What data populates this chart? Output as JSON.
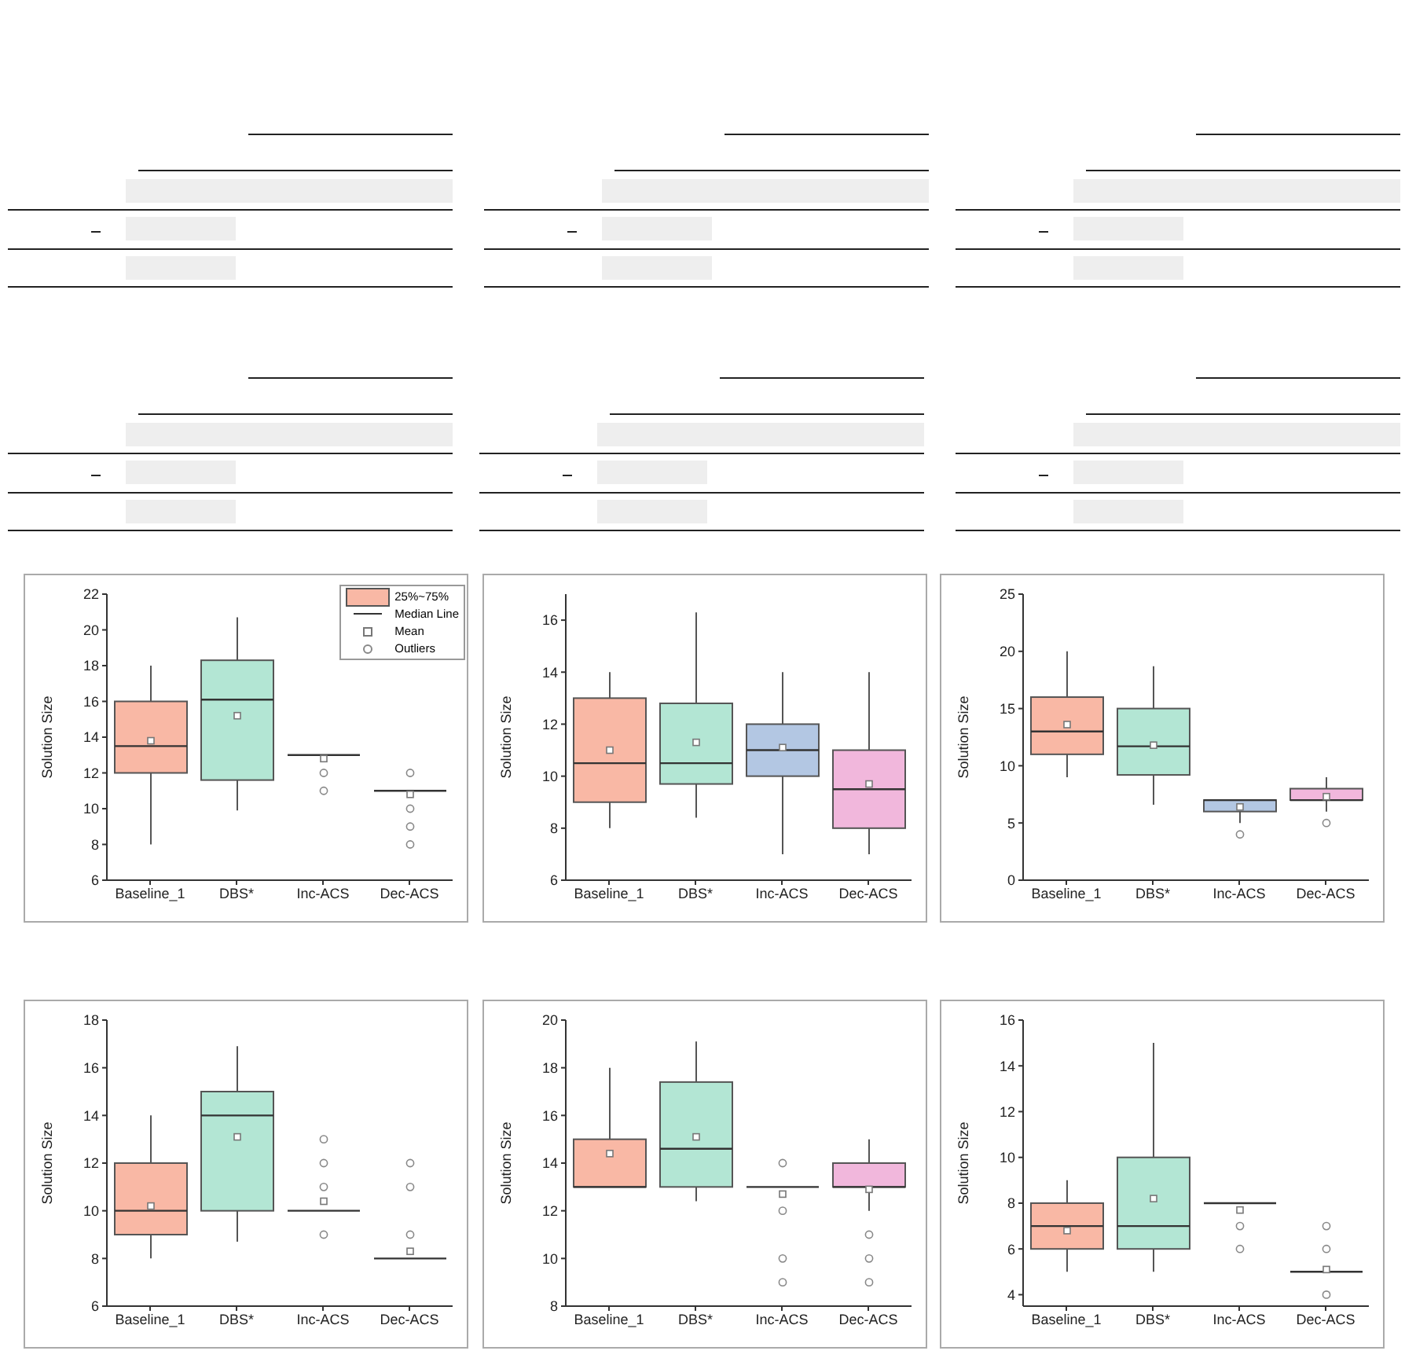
{
  "chart_data": [
    {
      "type": "box",
      "categories": [
        "Baseline_1",
        "DBS*",
        "Inc-ACS",
        "Dec-ACS"
      ],
      "ylabel": "Solution Size",
      "ylim": [
        6,
        22
      ],
      "yticks": [
        6,
        8,
        10,
        12,
        14,
        16,
        18,
        20,
        22
      ],
      "colors": [
        "#f9b8a5",
        "#b3e6d4",
        "#b3c7e3",
        "#f1b7dc"
      ],
      "annotations": [
        "25%~75%",
        "Median Line",
        "Mean",
        "Outliers"
      ],
      "boxes": [
        {
          "low": 8,
          "q1": 12,
          "median": 13.5,
          "q3": 16,
          "high": 18,
          "mean": 13.8
        },
        {
          "low": 9.9,
          "q1": 11.6,
          "median": 16.1,
          "q3": 18.3,
          "high": 20.7,
          "mean": 15.2
        },
        {
          "low": 13,
          "q1": 13,
          "median": 13,
          "q3": 13,
          "high": 13,
          "mean": 12.8,
          "outliers": [
            12,
            11
          ]
        },
        {
          "low": 11,
          "q1": 11,
          "median": 11,
          "q3": 11,
          "high": 11,
          "mean": 10.8,
          "outliers": [
            12,
            10,
            9,
            8
          ]
        }
      ]
    },
    {
      "type": "box",
      "categories": [
        "Baseline_1",
        "DBS*",
        "Inc-ACS",
        "Dec-ACS"
      ],
      "ylabel": "Solution Size",
      "ylim": [
        6,
        17
      ],
      "yticks": [
        6,
        8,
        10,
        12,
        14,
        16
      ],
      "colors": [
        "#f9b8a5",
        "#b3e6d4",
        "#b3c7e3",
        "#f1b7dc"
      ],
      "boxes": [
        {
          "low": 8,
          "q1": 9,
          "median": 10.5,
          "q3": 13,
          "high": 14,
          "mean": 11
        },
        {
          "low": 8.4,
          "q1": 9.7,
          "median": 10.5,
          "q3": 12.8,
          "high": 16.3,
          "mean": 11.3
        },
        {
          "low": 7,
          "q1": 10,
          "median": 11,
          "q3": 12,
          "high": 14,
          "mean": 11.1
        },
        {
          "low": 7,
          "q1": 8,
          "median": 9.5,
          "q3": 11,
          "high": 14,
          "mean": 9.7
        }
      ]
    },
    {
      "type": "box",
      "categories": [
        "Baseline_1",
        "DBS*",
        "Inc-ACS",
        "Dec-ACS"
      ],
      "ylabel": "Solution Size",
      "ylim": [
        0,
        25
      ],
      "yticks": [
        0,
        5,
        10,
        15,
        20,
        25
      ],
      "colors": [
        "#f9b8a5",
        "#b3e6d4",
        "#b3c7e3",
        "#f1b7dc"
      ],
      "boxes": [
        {
          "low": 9,
          "q1": 11,
          "median": 13,
          "q3": 16,
          "high": 20,
          "mean": 13.6
        },
        {
          "low": 6.6,
          "q1": 9.2,
          "median": 11.7,
          "q3": 15,
          "high": 18.7,
          "mean": 11.8
        },
        {
          "low": 5,
          "q1": 6,
          "median": 7,
          "q3": 7,
          "high": 7,
          "mean": 6.4,
          "outliers": [
            4
          ]
        },
        {
          "low": 6,
          "q1": 7,
          "median": 7,
          "q3": 8,
          "high": 9,
          "mean": 7.3,
          "outliers": [
            5
          ]
        }
      ]
    },
    {
      "type": "box",
      "categories": [
        "Baseline_1",
        "DBS*",
        "Inc-ACS",
        "Dec-ACS"
      ],
      "ylabel": "Solution Size",
      "ylim": [
        6,
        18
      ],
      "yticks": [
        6,
        8,
        10,
        12,
        14,
        16,
        18
      ],
      "colors": [
        "#f9b8a5",
        "#b3e6d4",
        "#b3c7e3",
        "#f1b7dc"
      ],
      "boxes": [
        {
          "low": 8,
          "q1": 9,
          "median": 10,
          "q3": 12,
          "high": 14,
          "mean": 10.2
        },
        {
          "low": 8.7,
          "q1": 10,
          "median": 14,
          "q3": 15,
          "high": 16.9,
          "mean": 13.1
        },
        {
          "low": 10,
          "q1": 10,
          "median": 10,
          "q3": 10,
          "high": 10,
          "mean": 10.4,
          "outliers": [
            13,
            12,
            11,
            9
          ]
        },
        {
          "low": 8,
          "q1": 8,
          "median": 8,
          "q3": 8,
          "high": 8,
          "mean": 8.3,
          "outliers": [
            12,
            11,
            9
          ]
        }
      ]
    },
    {
      "type": "box",
      "categories": [
        "Baseline_1",
        "DBS*",
        "Inc-ACS",
        "Dec-ACS"
      ],
      "ylabel": "Solution Size",
      "ylim": [
        8,
        20
      ],
      "yticks": [
        8,
        10,
        12,
        14,
        16,
        18,
        20
      ],
      "colors": [
        "#f9b8a5",
        "#b3e6d4",
        "#b3c7e3",
        "#f1b7dc"
      ],
      "boxes": [
        {
          "low": 13,
          "q1": 13,
          "median": 13,
          "q3": 15,
          "high": 18,
          "mean": 14.4
        },
        {
          "low": 12.4,
          "q1": 13,
          "median": 14.6,
          "q3": 17.4,
          "high": 19.1,
          "mean": 15.1
        },
        {
          "low": 13,
          "q1": 13,
          "median": 13,
          "q3": 13,
          "high": 13,
          "mean": 12.7,
          "outliers": [
            14,
            12,
            10,
            9
          ]
        },
        {
          "low": 12,
          "q1": 13,
          "median": 13,
          "q3": 14,
          "high": 15,
          "mean": 12.9,
          "outliers": [
            11,
            10,
            9
          ]
        }
      ]
    },
    {
      "type": "box",
      "categories": [
        "Baseline_1",
        "DBS*",
        "Inc-ACS",
        "Dec-ACS"
      ],
      "ylabel": "Solution Size",
      "ylim": [
        3.5,
        16
      ],
      "yticks": [
        4,
        6,
        8,
        10,
        12,
        14,
        16
      ],
      "colors": [
        "#f9b8a5",
        "#b3e6d4",
        "#b3c7e3",
        "#f1b7dc"
      ],
      "boxes": [
        {
          "low": 5,
          "q1": 6,
          "median": 7,
          "q3": 8,
          "high": 9,
          "mean": 6.8
        },
        {
          "low": 5,
          "q1": 6,
          "median": 7,
          "q3": 10,
          "high": 15,
          "mean": 8.2
        },
        {
          "low": 8,
          "q1": 8,
          "median": 8,
          "q3": 8,
          "high": 8,
          "mean": 7.7,
          "outliers": [
            7,
            6
          ]
        },
        {
          "low": 5,
          "q1": 5,
          "median": 5,
          "q3": 5,
          "high": 5,
          "mean": 5.1,
          "outliers": [
            7,
            6,
            4
          ]
        }
      ]
    }
  ]
}
